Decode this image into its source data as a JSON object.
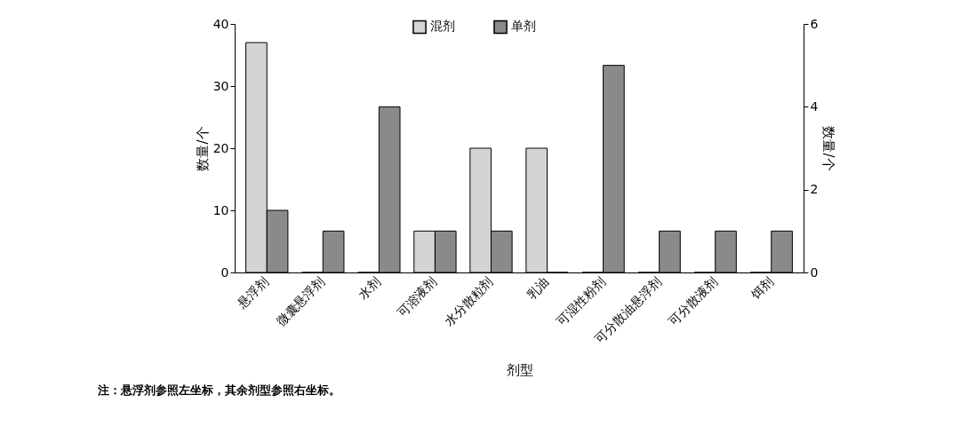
{
  "chart_data": {
    "type": "bar",
    "xlabel": "剂型",
    "ylabel": "数量/个",
    "y2label": "数量/个",
    "categories": [
      "悬浮剂",
      "微囊悬浮剂",
      "水剂",
      "可溶液剂",
      "水分散粒剂",
      "乳油",
      "可湿性粉剂",
      "可分散油悬浮剂",
      "可分散液剂",
      "饵剂"
    ],
    "series": [
      {
        "name": "混剂",
        "color": "#d4d4d4",
        "values": [
          37,
          null,
          null,
          null,
          null,
          null,
          null,
          null,
          null,
          null
        ]
      },
      {
        "name": "单剂",
        "color": "#8a8a8a",
        "values": [
          10,
          null,
          null,
          null,
          null,
          null,
          null,
          null,
          null,
          null
        ]
      },
      {
        "color": "#d4d4d4",
        "axis": "y2",
        "values": [
          null,
          0,
          0,
          1,
          3,
          3,
          0,
          0,
          0,
          0
        ]
      },
      {
        "color": "#8a8a8a",
        "axis": "y2",
        "values": [
          null,
          1,
          4,
          1,
          1,
          0,
          5,
          1,
          1,
          1
        ]
      }
    ],
    "ylim": [
      0,
      40
    ],
    "yticks": [
      0,
      10,
      20,
      30,
      40
    ],
    "y2lim": [
      0,
      6
    ],
    "y2ticks": [
      0,
      2,
      4,
      6
    ],
    "legend": "top",
    "grid": false,
    "annotations": [
      "注：悬浮剂参照左坐标，其余剂型参照右坐标。"
    ]
  }
}
